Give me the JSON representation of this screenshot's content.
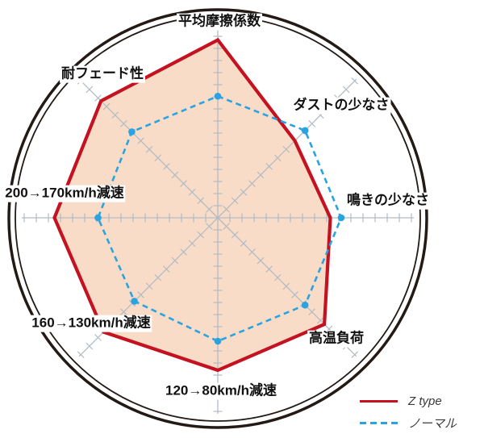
{
  "chart_data": {
    "type": "radar",
    "title": "",
    "categories": [
      "平均摩擦係数",
      "ダストの少なさ",
      "鳴きの少なさ",
      "高温負荷",
      "120→80km/h減速",
      "160→130km/h減速",
      "200→170km/h減速",
      "耐フェード性"
    ],
    "series": [
      {
        "name": "Z type",
        "line": "solid",
        "color": "#c41220",
        "fill": "#f8dcc8",
        "values": [
          9.8,
          6.0,
          6.2,
          8.3,
          8.4,
          8.9,
          9.0,
          9.1
        ]
      },
      {
        "name": "ノーマル",
        "line": "dashed",
        "color": "#2aa3e0",
        "fill": null,
        "values": [
          6.7,
          6.8,
          6.8,
          6.8,
          6.8,
          6.5,
          6.6,
          6.7
        ]
      }
    ],
    "ylim": [
      0,
      10
    ],
    "grid": {
      "axis_count": 8,
      "tick_count": 16,
      "axis_color": "#b2bbc3",
      "outer_ring_color": "#241a15",
      "grid_style": "cross-ticks-on-spokes",
      "enclosure": "double-circle"
    },
    "legend_position": "bottom-right"
  }
}
